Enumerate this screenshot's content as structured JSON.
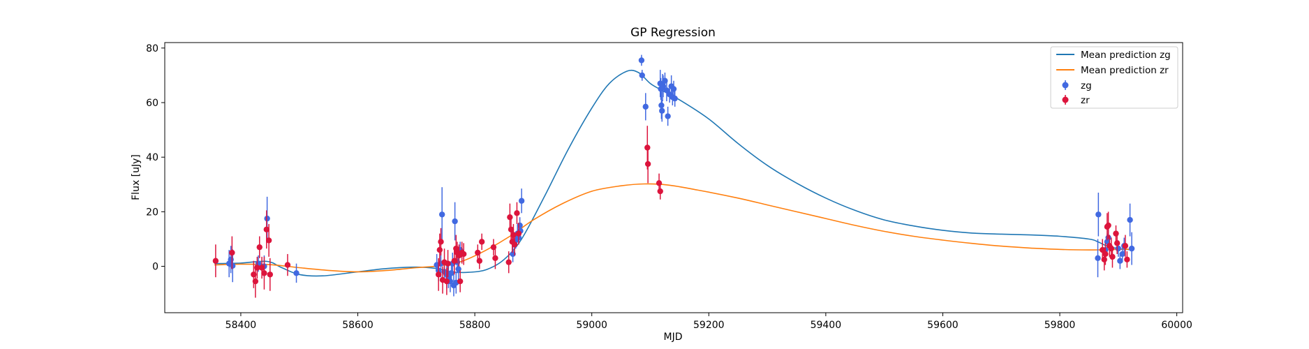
{
  "chart_data": {
    "type": "scatter",
    "title": "GP Regression",
    "xlabel": "MJD",
    "ylabel": "Flux [uJy]",
    "xlim": [
      58270,
      60010
    ],
    "ylim": [
      -17,
      82
    ],
    "xticks": [
      58400,
      58600,
      58800,
      59000,
      59200,
      59400,
      59600,
      59800,
      60000
    ],
    "yticks": [
      0,
      20,
      40,
      60,
      80
    ],
    "grid": false,
    "legend_position": "top-right",
    "colors": {
      "zg_line": "#1f77b4",
      "zr_line": "#ff7f0e",
      "zg_points": "#4169e1",
      "zr_points": "#dc143c"
    },
    "series": [
      {
        "name": "Mean prediction zg",
        "kind": "line",
        "x": [
          58355,
          58400,
          58445,
          58470,
          58500,
          58540,
          58600,
          58650,
          58700,
          58735,
          58760,
          58790,
          58820,
          58850,
          58880,
          58920,
          58960,
          59000,
          59030,
          59060,
          59080,
          59100,
          59120,
          59150,
          59200,
          59250,
          59300,
          59350,
          59400,
          59450,
          59500,
          59550,
          59600,
          59650,
          59700,
          59750,
          59800,
          59850,
          59865,
          59880,
          59900,
          59925
        ],
        "y": [
          1.0,
          1.2,
          1.8,
          -0.5,
          -3.0,
          -3.5,
          -2.0,
          -0.8,
          -0.3,
          -0.8,
          -2.0,
          -2.2,
          -1.2,
          2.5,
          10.0,
          26.0,
          43.0,
          58.0,
          67.0,
          71.5,
          71.0,
          67.0,
          64.5,
          61.0,
          54.0,
          45.0,
          37.0,
          30.5,
          25.0,
          20.5,
          17.0,
          14.8,
          13.2,
          12.2,
          11.8,
          11.5,
          11.0,
          10.0,
          9.0,
          7.5,
          6.5,
          6.0
        ]
      },
      {
        "name": "Mean prediction zr",
        "kind": "line",
        "x": [
          58355,
          58400,
          58450,
          58500,
          58550,
          58600,
          58650,
          58700,
          58740,
          58780,
          58820,
          58860,
          58900,
          58950,
          59000,
          59050,
          59090,
          59130,
          59180,
          59250,
          59300,
          59350,
          59400,
          59450,
          59500,
          59550,
          59600,
          59650,
          59700,
          59750,
          59800,
          59850,
          59880,
          59900,
          59925
        ],
        "y": [
          0.5,
          0.8,
          0.6,
          -0.5,
          -1.5,
          -2.0,
          -1.5,
          -0.5,
          0.2,
          2.0,
          6.0,
          11.0,
          17.0,
          23.0,
          27.5,
          29.5,
          30.2,
          29.8,
          28.0,
          25.0,
          22.5,
          20.0,
          17.5,
          15.0,
          12.8,
          11.0,
          9.6,
          8.4,
          7.4,
          6.7,
          6.2,
          6.0,
          6.1,
          6.2,
          6.3
        ]
      },
      {
        "name": "zg",
        "kind": "errorbar",
        "points": [
          [
            58380,
            1.0,
            5.0
          ],
          [
            58383,
            2.5,
            5.0
          ],
          [
            58386,
            0.2,
            6.0
          ],
          [
            58430,
            1.0,
            3.0
          ],
          [
            58440,
            0.0,
            4.0
          ],
          [
            58445,
            17.5,
            8.0
          ],
          [
            58495,
            -2.5,
            3.5
          ],
          [
            58735,
            0.5,
            4.0
          ],
          [
            58738,
            -1.5,
            4.0
          ],
          [
            58742,
            1.0,
            5.0
          ],
          [
            58744,
            19.0,
            10.0
          ],
          [
            58748,
            -2.0,
            4.0
          ],
          [
            58752,
            -3.0,
            5.0
          ],
          [
            58755,
            -4.0,
            4.0
          ],
          [
            58758,
            -5.5,
            4.0
          ],
          [
            58760,
            -2.5,
            3.0
          ],
          [
            58762,
            1.0,
            4.0
          ],
          [
            58764,
            -7.0,
            4.0
          ],
          [
            58766,
            16.5,
            7.0
          ],
          [
            58768,
            -6.0,
            4.0
          ],
          [
            58770,
            1.5,
            4.0
          ],
          [
            58772,
            -1.0,
            4.0
          ],
          [
            58775,
            6.0,
            3.0
          ],
          [
            58865,
            4.5,
            3.0
          ],
          [
            58870,
            9.5,
            3.0
          ],
          [
            58873,
            12.0,
            3.0
          ],
          [
            58875,
            10.5,
            2.0
          ],
          [
            58877,
            15.0,
            3.0
          ],
          [
            58880,
            24.0,
            4.5
          ],
          [
            58878,
            13.0,
            3.0
          ],
          [
            59085,
            75.5,
            2.0
          ],
          [
            59086,
            70.0,
            2.0
          ],
          [
            59092,
            58.5,
            5.0
          ],
          [
            59117,
            67.0,
            5.0
          ],
          [
            59118,
            65.0,
            4.0
          ],
          [
            59119,
            59.0,
            5.0
          ],
          [
            59120,
            57.0,
            4.0
          ],
          [
            59121,
            65.5,
            5.0
          ],
          [
            59122,
            66.0,
            4.0
          ],
          [
            59125,
            68.0,
            3.0
          ],
          [
            59128,
            64.5,
            4.0
          ],
          [
            59130,
            55.0,
            3.5
          ],
          [
            59133,
            63.0,
            3.0
          ],
          [
            59136,
            66.0,
            4.0
          ],
          [
            59138,
            62.0,
            3.0
          ],
          [
            59140,
            65.0,
            3.0
          ],
          [
            59142,
            61.5,
            3.0
          ],
          [
            59865,
            3.0,
            7.0
          ],
          [
            59866,
            19.0,
            8.0
          ],
          [
            59878,
            6.0,
            3.0
          ],
          [
            59881,
            9.0,
            3.0
          ],
          [
            59883,
            10.5,
            3.0
          ],
          [
            59900,
            6.5,
            3.0
          ],
          [
            59903,
            2.0,
            3.0
          ],
          [
            59907,
            4.5,
            3.0
          ],
          [
            59910,
            7.5,
            3.0
          ],
          [
            59920,
            17.0,
            6.0
          ],
          [
            59923,
            6.5,
            6.0
          ]
        ]
      },
      {
        "name": "zr",
        "kind": "errorbar",
        "points": [
          [
            58357,
            2.0,
            6.0
          ],
          [
            58385,
            5.0,
            6.0
          ],
          [
            58422,
            -3.0,
            5.0
          ],
          [
            58425,
            -5.5,
            6.0
          ],
          [
            58428,
            -0.5,
            4.0
          ],
          [
            58432,
            7.0,
            4.0
          ],
          [
            58436,
            -0.5,
            4.0
          ],
          [
            58440,
            -2.5,
            6.0
          ],
          [
            58444,
            13.5,
            7.0
          ],
          [
            58448,
            9.5,
            6.0
          ],
          [
            58450,
            -3.0,
            6.0
          ],
          [
            58480,
            0.5,
            4.0
          ],
          [
            58738,
            -3.0,
            6.0
          ],
          [
            58740,
            6.0,
            6.0
          ],
          [
            58742,
            9.0,
            5.0
          ],
          [
            58745,
            -5.0,
            5.0
          ],
          [
            58748,
            1.5,
            5.0
          ],
          [
            58752,
            -5.5,
            5.0
          ],
          [
            58754,
            1.0,
            5.0
          ],
          [
            58765,
            2.0,
            5.0
          ],
          [
            58768,
            6.5,
            5.0
          ],
          [
            58770,
            5.0,
            4.0
          ],
          [
            58773,
            4.0,
            4.0
          ],
          [
            58775,
            -5.5,
            4.0
          ],
          [
            58778,
            5.0,
            4.0
          ],
          [
            58781,
            4.5,
            4.0
          ],
          [
            58805,
            5.0,
            3.0
          ],
          [
            58808,
            2.0,
            3.0
          ],
          [
            58812,
            9.0,
            3.0
          ],
          [
            58832,
            7.0,
            3.0
          ],
          [
            58835,
            3.0,
            4.0
          ],
          [
            58858,
            1.5,
            4.0
          ],
          [
            58860,
            18.0,
            5.0
          ],
          [
            58862,
            13.5,
            4.0
          ],
          [
            58864,
            9.0,
            4.0
          ],
          [
            58866,
            11.5,
            4.0
          ],
          [
            58868,
            8.0,
            4.0
          ],
          [
            58872,
            19.5,
            4.0
          ],
          [
            58875,
            12.0,
            4.0
          ],
          [
            59095,
            43.5,
            8.0
          ],
          [
            59096,
            37.5,
            7.0
          ],
          [
            59115,
            30.5,
            3.5
          ],
          [
            59117,
            27.5,
            3.0
          ],
          [
            59873,
            6.0,
            4.0
          ],
          [
            59876,
            2.5,
            4.0
          ],
          [
            59878,
            4.5,
            4.0
          ],
          [
            59881,
            14.5,
            5.0
          ],
          [
            59883,
            15.0,
            5.0
          ],
          [
            59885,
            7.5,
            4.0
          ],
          [
            59888,
            6.5,
            4.0
          ],
          [
            59890,
            3.5,
            4.0
          ],
          [
            59896,
            12.0,
            3.0
          ],
          [
            59898,
            8.5,
            4.0
          ],
          [
            59912,
            7.5,
            4.0
          ],
          [
            59915,
            2.5,
            3.0
          ]
        ]
      }
    ]
  }
}
